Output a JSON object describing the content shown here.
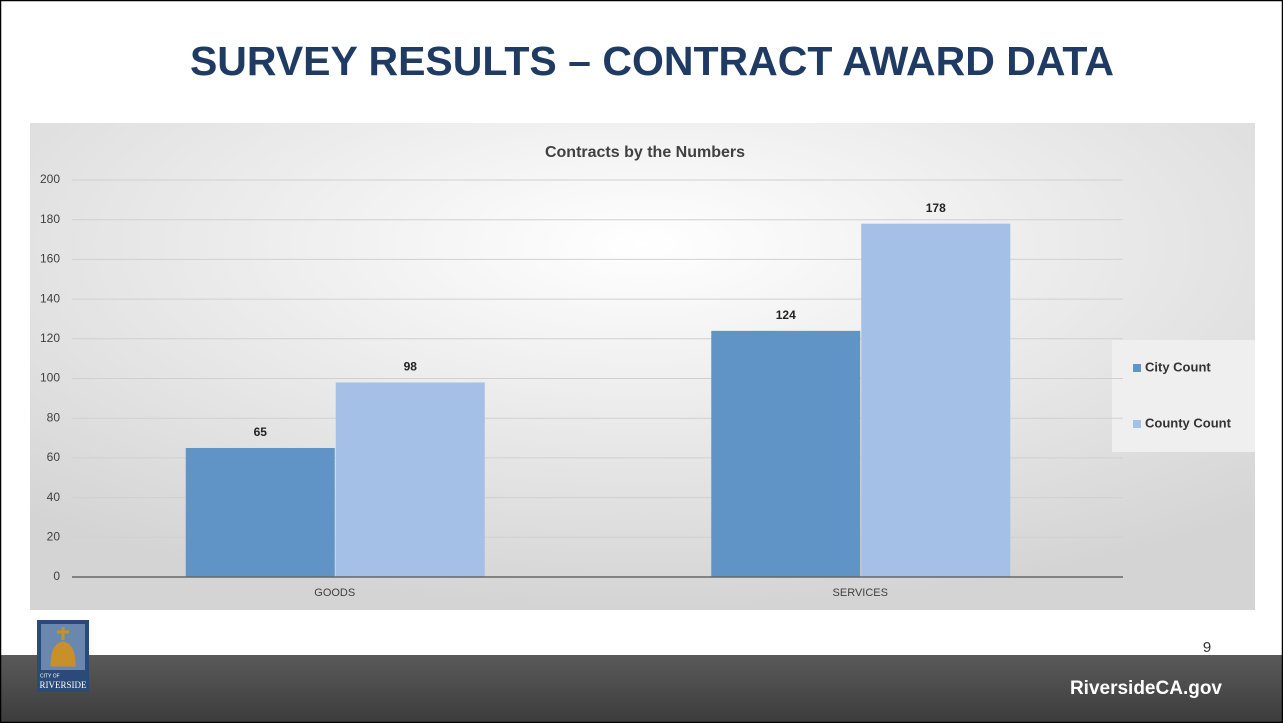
{
  "slide": {
    "title": "SURVEY RESULTS – CONTRACT AWARD DATA",
    "page_number": "9",
    "footer": "RiversideCA.gov",
    "logo": {
      "line1": "CITY OF",
      "line2": "RIVERSIDE"
    }
  },
  "chart_data": {
    "type": "bar",
    "title": "Contracts by the Numbers",
    "categories": [
      "GOODS",
      "SERVICES"
    ],
    "series": [
      {
        "name": "City Count",
        "color": "#6194c6",
        "values": [
          65,
          124
        ]
      },
      {
        "name": "County Count",
        "color": "#a4c0e6",
        "values": [
          98,
          178
        ]
      }
    ],
    "ylim": [
      0,
      200
    ],
    "yticks": [
      0,
      20,
      40,
      60,
      80,
      100,
      120,
      140,
      160,
      180,
      200
    ],
    "grid": true,
    "legend": "right"
  }
}
